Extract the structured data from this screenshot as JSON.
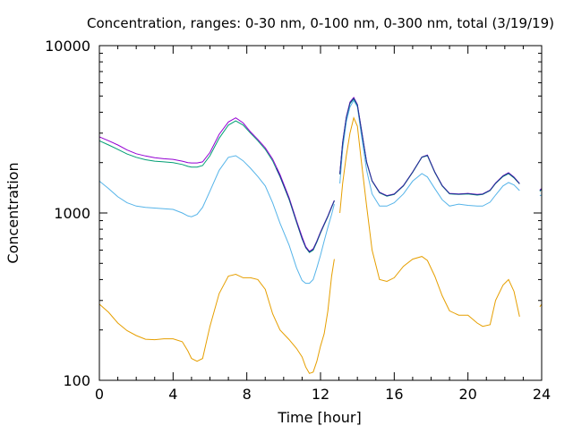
{
  "chart_data": {
    "type": "line",
    "title": "Concentration, ranges: 0-30 nm, 0-100 nm, 0-300 nm, total (3/19/19)",
    "xlabel": "Time [hour]",
    "ylabel": "Concentration",
    "xlim": [
      0,
      24
    ],
    "ylim": [
      100,
      10000
    ],
    "yscale": "log",
    "grid": false,
    "legend": "none",
    "xticks": [
      0,
      4,
      8,
      12,
      16,
      20,
      24
    ],
    "xtick_labels": [
      "0",
      "4",
      "8",
      "12",
      "16",
      "20",
      "24"
    ],
    "yticks": [
      100,
      1000,
      10000
    ],
    "ytick_labels": [
      "100",
      "1000",
      "10000"
    ],
    "series": [
      {
        "color": "#e69f00",
        "segments": [
          {
            "x": [
              0,
              0.5,
              1,
              1.5,
              2,
              2.5,
              3,
              3.5,
              4,
              4.5,
              4.8,
              5,
              5.3,
              5.6,
              6,
              6.5,
              7,
              7.4,
              7.8,
              8.2,
              8.6,
              9,
              9.4,
              9.8,
              10.3,
              10.7,
              11,
              11.2,
              11.4,
              11.6,
              11.8,
              12,
              12.2,
              12.4,
              12.6,
              12.75
            ],
            "y": [
              285,
              255,
              220,
              198,
              185,
              176,
              175,
              177,
              177,
              170,
              150,
              135,
              130,
              135,
              210,
              330,
              420,
              430,
              410,
              410,
              400,
              350,
              250,
              200,
              175,
              155,
              138,
              120,
              110,
              112,
              130,
              160,
              190,
              260,
              420,
              530
            ]
          },
          {
            "x": [
              13.05,
              13.2,
              13.4,
              13.6,
              13.8,
              14,
              14.2,
              14.5,
              14.8,
              15.2,
              15.6,
              16,
              16.5,
              17,
              17.5,
              17.8,
              18.2,
              18.6,
              19,
              19.5,
              20,
              20.5,
              20.8,
              21.2,
              21.5,
              21.9,
              22.2,
              22.5,
              22.8
            ],
            "y": [
              1000,
              1500,
              2200,
              3000,
              3700,
              3300,
              2100,
              1100,
              600,
              400,
              390,
              410,
              480,
              530,
              550,
              520,
              420,
              320,
              260,
              245,
              245,
              220,
              210,
              215,
              300,
              370,
              400,
              340,
              240
            ]
          },
          {
            "x": [
              23.9,
              24
            ],
            "y": [
              275,
              285
            ]
          }
        ]
      },
      {
        "color": "#56b4e9",
        "segments": [
          {
            "x": [
              0,
              0.5,
              1,
              1.5,
              2,
              2.5,
              3,
              3.5,
              4,
              4.5,
              4.8,
              5,
              5.3,
              5.6,
              6,
              6.5,
              7,
              7.4,
              7.8,
              8.2,
              8.6,
              9,
              9.4,
              9.8,
              10.3,
              10.7,
              11,
              11.2,
              11.4,
              11.6,
              11.8,
              12,
              12.2,
              12.4,
              12.6,
              12.75
            ],
            "y": [
              1550,
              1400,
              1250,
              1150,
              1100,
              1080,
              1070,
              1060,
              1050,
              1000,
              960,
              950,
              980,
              1080,
              1350,
              1800,
              2150,
              2200,
              2050,
              1850,
              1650,
              1450,
              1150,
              870,
              640,
              470,
              395,
              380,
              380,
              400,
              470,
              560,
              680,
              820,
              980,
              1130
            ]
          },
          {
            "x": [
              13.05,
              13.2,
              13.4,
              13.6,
              13.8,
              14,
              14.2,
              14.5,
              14.8,
              15.2,
              15.6,
              16,
              16.5,
              17,
              17.5,
              17.8,
              18.2,
              18.6,
              19,
              19.5,
              20,
              20.5,
              20.8,
              21.2,
              21.5,
              21.9,
              22.2,
              22.5,
              22.8
            ],
            "y": [
              1500,
              2400,
              3500,
              4300,
              4700,
              4300,
              3000,
              1800,
              1300,
              1100,
              1100,
              1150,
              1300,
              1550,
              1720,
              1640,
              1400,
              1200,
              1100,
              1130,
              1110,
              1100,
              1100,
              1160,
              1280,
              1450,
              1520,
              1470,
              1360
            ]
          },
          {
            "x": [
              23.9,
              24
            ],
            "y": [
              1270,
              1280
            ]
          }
        ]
      },
      {
        "color": "#009e73",
        "segments": [
          {
            "x": [
              0,
              0.5,
              1,
              1.5,
              2,
              2.5,
              3,
              3.5,
              4,
              4.5,
              4.8,
              5,
              5.3,
              5.6,
              6,
              6.5,
              7,
              7.4,
              7.8,
              8.2,
              8.6,
              9,
              9.4,
              9.8,
              10.3,
              10.7,
              11,
              11.2,
              11.4,
              11.6,
              11.8,
              12,
              12.2,
              12.4,
              12.6,
              12.75
            ],
            "y": [
              2700,
              2550,
              2400,
              2250,
              2150,
              2080,
              2040,
              2020,
              2000,
              1950,
              1900,
              1880,
              1880,
              1920,
              2200,
              2800,
              3350,
              3550,
              3350,
              3000,
              2700,
              2400,
              2050,
              1650,
              1200,
              880,
              700,
              620,
              580,
              600,
              670,
              760,
              850,
              950,
              1080,
              1180
            ]
          },
          {
            "x": [
              13.05,
              13.2,
              13.4,
              13.6,
              13.8,
              14,
              14.2,
              14.5,
              14.8,
              15.2,
              15.6,
              16,
              16.5,
              17,
              17.5,
              17.8,
              18.2,
              18.6,
              19,
              19.5,
              20,
              20.5,
              20.8,
              21.2,
              21.5,
              21.9,
              22.2,
              22.5,
              22.8
            ],
            "y": [
              1700,
              2600,
              3700,
              4500,
              4800,
              4400,
              3200,
              2000,
              1550,
              1320,
              1260,
              1290,
              1450,
              1750,
              2150,
              2200,
              1750,
              1450,
              1300,
              1290,
              1300,
              1280,
              1290,
              1360,
              1500,
              1650,
              1720,
              1620,
              1490
            ]
          },
          {
            "x": [
              23.9,
              24
            ],
            "y": [
              1350,
              1380
            ]
          }
        ]
      },
      {
        "color": "#9400d3",
        "segments": [
          {
            "x": [
              0,
              0.5,
              1,
              1.5,
              2,
              2.5,
              3,
              3.5,
              4,
              4.5,
              4.8,
              5,
              5.3,
              5.6,
              6,
              6.5,
              7,
              7.4,
              7.8,
              8.2,
              8.6,
              9,
              9.4,
              9.8,
              10.3,
              10.7,
              11,
              11.2,
              11.4,
              11.6,
              11.8,
              12,
              12.2,
              12.4,
              12.6,
              12.75
            ],
            "y": [
              2850,
              2700,
              2550,
              2380,
              2260,
              2190,
              2140,
              2110,
              2090,
              2040,
              2000,
              1990,
              1990,
              2020,
              2300,
              2950,
              3500,
              3700,
              3450,
              3050,
              2750,
              2450,
              2100,
              1700,
              1230,
              900,
              720,
              630,
              590,
              610,
              680,
              770,
              860,
              960,
              1090,
              1190
            ]
          },
          {
            "x": [
              13.05,
              13.2,
              13.4,
              13.6,
              13.8,
              14,
              14.2,
              14.5,
              14.8,
              15.2,
              15.6,
              16,
              16.5,
              17,
              17.5,
              17.8,
              18.2,
              18.6,
              19,
              19.5,
              20,
              20.5,
              20.8,
              21.2,
              21.5,
              21.9,
              22.2,
              22.5,
              22.8
            ],
            "y": [
              1720,
              2650,
              3750,
              4600,
              4900,
              4450,
              3250,
              2020,
              1560,
              1330,
              1270,
              1300,
              1460,
              1760,
              2160,
              2220,
              1760,
              1460,
              1310,
              1300,
              1310,
              1290,
              1300,
              1370,
              1510,
              1670,
              1740,
              1640,
              1500
            ]
          },
          {
            "x": [
              23.9,
              24
            ],
            "y": [
              1370,
              1400
            ]
          }
        ]
      },
      {
        "color": "#1f3a93",
        "segments": [
          {
            "x": [
              9.6,
              9.8,
              10.3,
              10.7,
              11,
              11.2,
              11.4,
              11.6,
              11.8,
              12,
              12.2,
              12.4,
              12.6,
              12.75
            ],
            "y": [
              1850,
              1660,
              1210,
              885,
              705,
              622,
              585,
              605,
              675,
              765,
              855,
              955,
              1085,
              1185
            ]
          },
          {
            "x": [
              13.05,
              13.2,
              13.4,
              13.6,
              13.8,
              14,
              14.2,
              14.5,
              14.8,
              15.2,
              15.6,
              16,
              16.5,
              17,
              17.5,
              17.8,
              18.2,
              18.6,
              19,
              19.5,
              20,
              20.5,
              20.8,
              21.2,
              21.5,
              21.9,
              22.2,
              22.5,
              22.8
            ],
            "y": [
              1710,
              2620,
              3720,
              4550,
              4850,
              4420,
              3220,
              2010,
              1555,
              1325,
              1265,
              1295,
              1455,
              1755,
              2155,
              2210,
              1755,
              1455,
              1305,
              1295,
              1305,
              1285,
              1295,
              1365,
              1505,
              1660,
              1730,
              1630,
              1495
            ]
          },
          {
            "x": [
              23.9,
              24
            ],
            "y": [
              1360,
              1390
            ]
          }
        ]
      }
    ]
  }
}
